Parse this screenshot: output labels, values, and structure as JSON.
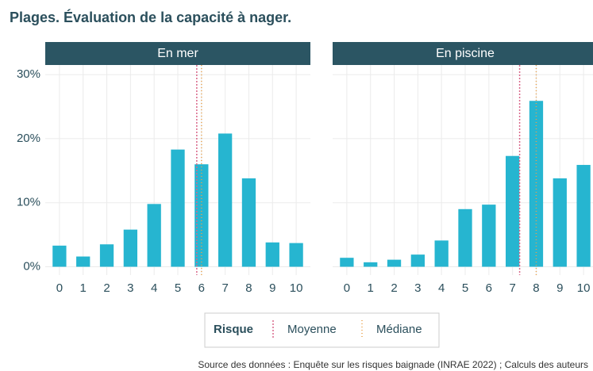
{
  "title": "Plages. Évaluation de la capacité à nager.",
  "chart_data": [
    {
      "type": "bar",
      "panel": "En mer",
      "color": "#26b5d0",
      "x": [
        0,
        1,
        2,
        3,
        4,
        5,
        6,
        7,
        8,
        9,
        10
      ],
      "values": [
        3.3,
        1.6,
        3.5,
        5.8,
        9.8,
        18.3,
        16.0,
        20.8,
        13.8,
        3.8,
        3.7
      ],
      "xlim": [
        -0.6,
        10.6
      ],
      "xticks": [
        0,
        1,
        2,
        3,
        4,
        5,
        6,
        7,
        8,
        9,
        10
      ],
      "ylim": [
        -1.3,
        31.5
      ],
      "yticks": [
        {
          "value": 0,
          "label": "0%"
        },
        {
          "value": 10,
          "label": "10%"
        },
        {
          "value": 20,
          "label": "20%"
        },
        {
          "value": 30,
          "label": "30%"
        }
      ],
      "grid": true,
      "mean": 5.8,
      "median": 6
    },
    {
      "type": "bar",
      "panel": "En piscine",
      "color": "#26b5d0",
      "x": [
        0,
        1,
        2,
        3,
        4,
        5,
        6,
        7,
        8,
        9,
        10
      ],
      "values": [
        1.4,
        0.7,
        1.1,
        1.9,
        4.1,
        9.0,
        9.7,
        17.3,
        25.9,
        13.8,
        15.9
      ],
      "xlim": [
        -0.6,
        10.6
      ],
      "xticks": [
        0,
        1,
        2,
        3,
        4,
        5,
        6,
        7,
        8,
        9,
        10
      ],
      "ylim": [
        -1.3,
        31.5
      ],
      "yticks": [
        {
          "value": 0,
          "label": "0%"
        },
        {
          "value": 10,
          "label": "10%"
        },
        {
          "value": 20,
          "label": "20%"
        },
        {
          "value": 30,
          "label": "30%"
        }
      ],
      "grid": true,
      "mean": 7.3,
      "median": 8
    }
  ],
  "legend": {
    "title": "Risque",
    "items": [
      {
        "name": "Moyenne",
        "color": "#d9678a"
      },
      {
        "name": "Médiane",
        "color": "#e8a04a"
      }
    ]
  },
  "source": "Source des données : Enquête sur les risques baignade (INRAE 2022) ; Calculs des auteurs"
}
